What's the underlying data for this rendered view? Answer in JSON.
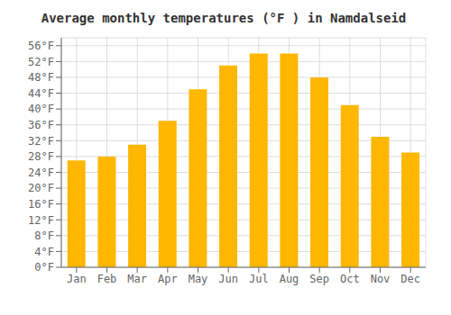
{
  "chart_data": {
    "type": "bar",
    "title": "Average monthly temperatures (°F ) in Namdalseid",
    "categories": [
      "Jan",
      "Feb",
      "Mar",
      "Apr",
      "May",
      "Jun",
      "Jul",
      "Aug",
      "Sep",
      "Oct",
      "Nov",
      "Dec"
    ],
    "values": [
      27,
      28,
      31,
      37,
      45,
      51,
      54,
      54,
      48,
      41,
      33,
      29
    ],
    "color": "#FFB700",
    "ylim": [
      0,
      58
    ],
    "yticks": [
      {
        "value": 0,
        "label": "0°F"
      },
      {
        "value": 4,
        "label": "4°F"
      },
      {
        "value": 8,
        "label": "8°F"
      },
      {
        "value": 12,
        "label": "12°F"
      },
      {
        "value": 16,
        "label": "16°F"
      },
      {
        "value": 20,
        "label": "20°F"
      },
      {
        "value": 24,
        "label": "24°F"
      },
      {
        "value": 28,
        "label": "28°F"
      },
      {
        "value": 32,
        "label": "32°F"
      },
      {
        "value": 36,
        "label": "36°F"
      },
      {
        "value": 40,
        "label": "40°F"
      },
      {
        "value": 44,
        "label": "44°F"
      },
      {
        "value": 48,
        "label": "48°F"
      },
      {
        "value": 52,
        "label": "52°F"
      },
      {
        "value": 56,
        "label": "56°F"
      }
    ],
    "grid": true
  }
}
